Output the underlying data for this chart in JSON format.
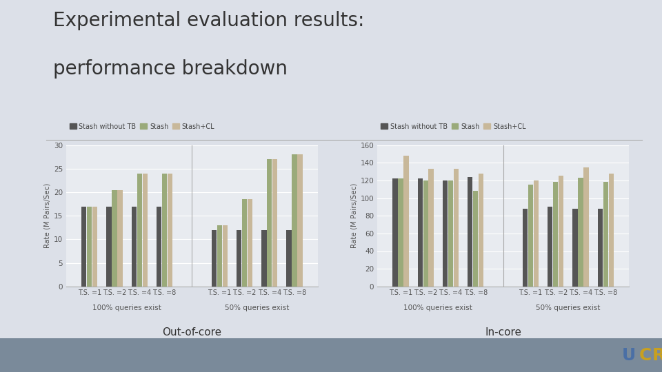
{
  "title_line1": "Experimental evaluation results:",
  "title_line2": "performance breakdown",
  "legend_labels": [
    "Stash without TB",
    "Stash",
    "Stash+CL"
  ],
  "bar_colors": [
    "#555555",
    "#9aaa7a",
    "#c8b89a"
  ],
  "x_labels": [
    "T.S. =1",
    "T.S. =2",
    "T.S. =4",
    "T.S. =8"
  ],
  "group_labels": [
    "100% queries exist",
    "50% queries exist"
  ],
  "out_of_core": {
    "ylabel": "Rate (M Pairs/Sec)",
    "ylim": [
      0,
      30
    ],
    "yticks": [
      0,
      5,
      10,
      15,
      20,
      25,
      30
    ],
    "subtitle": "Out-of-core",
    "data": {
      "100pct": {
        "stash_no_tb": [
          17,
          17,
          17,
          17
        ],
        "stash": [
          17,
          20.5,
          24,
          24
        ],
        "stash_cl": [
          17,
          20.5,
          24,
          24
        ]
      },
      "50pct": {
        "stash_no_tb": [
          12,
          12,
          12,
          12
        ],
        "stash": [
          13,
          18.5,
          27,
          28
        ],
        "stash_cl": [
          13,
          18.5,
          27,
          28
        ]
      }
    }
  },
  "in_core": {
    "ylabel": "Rate (M Pairs/Sec)",
    "ylim": [
      0,
      160
    ],
    "yticks": [
      0,
      20,
      40,
      60,
      80,
      100,
      120,
      140,
      160
    ],
    "subtitle": "In-core",
    "data": {
      "100pct": {
        "stash_no_tb": [
          122,
          122,
          120,
          124
        ],
        "stash": [
          122,
          120,
          120,
          108
        ],
        "stash_cl": [
          148,
          133,
          133,
          128
        ]
      },
      "50pct": {
        "stash_no_tb": [
          88,
          90,
          88,
          88
        ],
        "stash": [
          115,
          118,
          123,
          118
        ],
        "stash_cl": [
          120,
          125,
          135,
          128
        ]
      }
    }
  },
  "background_color": "#dce0e8",
  "chart_bg": "#e8ebf0",
  "divider_color": "#aaaaaa",
  "bottom_bar_color": "#7a8a9a",
  "ucr_U_color": "#4a6fa5",
  "ucr_C_color": "#c8a020",
  "ucr_R_color": "#c8a020"
}
